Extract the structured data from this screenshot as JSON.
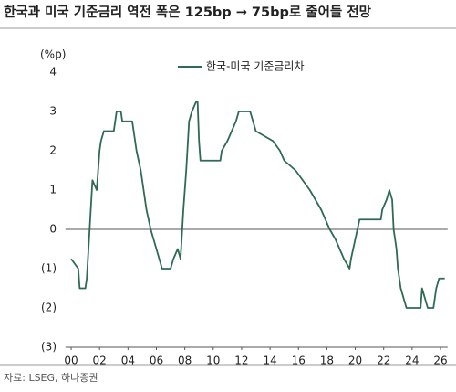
{
  "chart_data": {
    "type": "line",
    "title": "한국과 미국 기준금리 역전 폭은 125bp → 75bp로 줄어들 전망",
    "y_label": "(%p)",
    "source": "자료: LSEG, 하나증권",
    "legend": "top-center",
    "x": [
      2000.0,
      2000.5,
      2000.6,
      2001.0,
      2001.1,
      2001.3,
      2001.5,
      2001.8,
      2002.0,
      2002.1,
      2002.3,
      2003.0,
      2003.2,
      2003.5,
      2003.6,
      2004.3,
      2004.4,
      2004.6,
      2004.9,
      2005.1,
      2005.3,
      2005.6,
      2005.8,
      2006.0,
      2006.2,
      2006.4,
      2007.0,
      2007.2,
      2007.5,
      2007.7,
      2007.9,
      2008.1,
      2008.3,
      2008.5,
      2008.8,
      2008.9,
      2009.0,
      2009.1,
      2010.5,
      2010.6,
      2011.0,
      2011.3,
      2011.6,
      2011.8,
      2012.6,
      2012.8,
      2013.0,
      2014.2,
      2014.7,
      2015.0,
      2015.8,
      2016.3,
      2016.8,
      2017.2,
      2017.6,
      2017.9,
      2018.2,
      2018.6,
      2018.9,
      2019.2,
      2019.6,
      2019.7,
      2020.3,
      2021.8,
      2021.9,
      2022.2,
      2022.4,
      2022.6,
      2022.7,
      2022.9,
      2023.0,
      2023.2,
      2023.4,
      2023.6,
      2024.6,
      2024.7,
      2024.9,
      2025.1,
      2025.5,
      2025.7,
      2025.9,
      2026.3
    ],
    "series": [
      {
        "name": "한국-미국 기준금리차",
        "color": "#2f6b52",
        "values": [
          -0.75,
          -1.0,
          -1.5,
          -1.5,
          -1.25,
          0,
          1.25,
          1.0,
          2.0,
          2.25,
          2.5,
          2.5,
          3.0,
          3.0,
          2.75,
          2.75,
          2.5,
          2.0,
          1.5,
          1.0,
          0.5,
          0,
          -0.25,
          -0.5,
          -0.75,
          -1.0,
          -1.0,
          -0.75,
          -0.5,
          -0.75,
          0.5,
          1.5,
          2.75,
          3.0,
          3.25,
          3.25,
          2.25,
          1.75,
          1.75,
          2.0,
          2.25,
          2.5,
          2.75,
          3.0,
          3.0,
          2.75,
          2.5,
          2.25,
          2.0,
          1.75,
          1.5,
          1.25,
          1.0,
          0.75,
          0.5,
          0.25,
          0,
          -0.25,
          -0.5,
          -0.75,
          -1.0,
          -0.75,
          0.25,
          0.25,
          0.5,
          0.75,
          1.0,
          0.75,
          0,
          -0.5,
          -1.0,
          -1.5,
          -1.75,
          -2.0,
          -2.0,
          -1.5,
          -1.75,
          -2.0,
          -2.0,
          -1.5,
          -1.25,
          -1.25
        ]
      }
    ],
    "xlim": [
      1999.6,
      2026.5
    ],
    "xticks": [
      {
        "value": 2000,
        "label": "00"
      },
      {
        "value": 2002,
        "label": "02"
      },
      {
        "value": 2004,
        "label": "04"
      },
      {
        "value": 2006,
        "label": "06"
      },
      {
        "value": 2008,
        "label": "08"
      },
      {
        "value": 2010,
        "label": "10"
      },
      {
        "value": 2012,
        "label": "12"
      },
      {
        "value": 2014,
        "label": "14"
      },
      {
        "value": 2016,
        "label": "16"
      },
      {
        "value": 2018,
        "label": "18"
      },
      {
        "value": 2020,
        "label": "20"
      },
      {
        "value": 2022,
        "label": "22"
      },
      {
        "value": 2024,
        "label": "24"
      },
      {
        "value": 2026,
        "label": "26"
      }
    ],
    "ylim": [
      -3,
      4
    ],
    "yticks": [
      4,
      3,
      2,
      1,
      0,
      {
        "value": -1,
        "label": "(1)"
      },
      {
        "value": -2,
        "label": "(2)"
      },
      {
        "value": -3,
        "label": "(3)"
      }
    ]
  }
}
